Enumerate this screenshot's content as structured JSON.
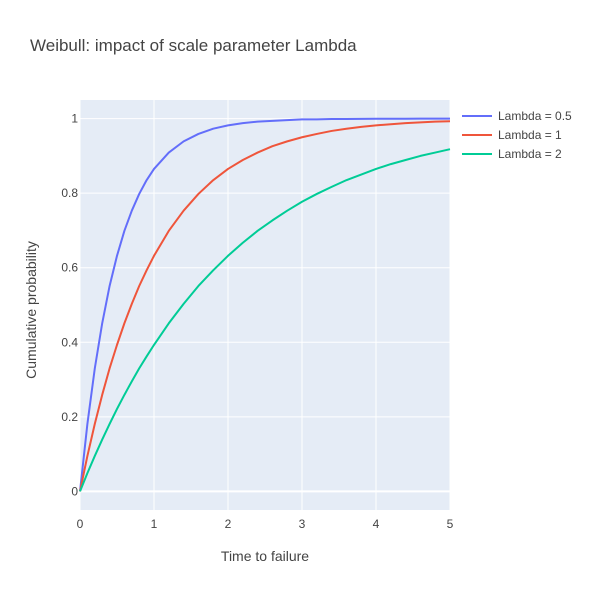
{
  "chart_data": {
    "type": "line",
    "title": "Weibull: impact of scale parameter Lambda",
    "xlabel": "Time to failure",
    "ylabel": "Cumulative probability",
    "xlim": [
      0,
      5
    ],
    "ylim": [
      -0.05,
      1.05
    ],
    "x_ticks": [
      "0",
      "1",
      "2",
      "3",
      "4",
      "5"
    ],
    "y_ticks": [
      "0",
      "0.2",
      "0.4",
      "0.6",
      "0.8",
      "1"
    ],
    "grid": true,
    "legend_position": "top-right",
    "plot_background": "#E5ECF6",
    "x": [
      0,
      0.1,
      0.2,
      0.3,
      0.4,
      0.5,
      0.6,
      0.7,
      0.8,
      0.9,
      1.0,
      1.2,
      1.4,
      1.6,
      1.8,
      2.0,
      2.2,
      2.4,
      2.6,
      2.8,
      3.0,
      3.2,
      3.4,
      3.6,
      3.8,
      4.0,
      4.2,
      4.4,
      4.6,
      4.8,
      5.0
    ],
    "series": [
      {
        "name": "Lambda = 0.5",
        "color": "#636EFA",
        "values": [
          0,
          0.181,
          0.33,
          0.451,
          0.551,
          0.632,
          0.699,
          0.753,
          0.798,
          0.835,
          0.865,
          0.909,
          0.939,
          0.959,
          0.973,
          0.982,
          0.988,
          0.992,
          0.994,
          0.996,
          0.998,
          0.998,
          0.999,
          0.999,
          0.9995,
          0.9997,
          0.9998,
          0.9998,
          0.9999,
          0.9999,
          1.0
        ]
      },
      {
        "name": "Lambda = 1",
        "color": "#EF553B",
        "values": [
          0,
          0.095,
          0.181,
          0.259,
          0.33,
          0.393,
          0.451,
          0.503,
          0.551,
          0.593,
          0.632,
          0.699,
          0.753,
          0.798,
          0.835,
          0.865,
          0.889,
          0.909,
          0.926,
          0.939,
          0.95,
          0.959,
          0.967,
          0.973,
          0.978,
          0.982,
          0.985,
          0.988,
          0.99,
          0.992,
          0.993
        ]
      },
      {
        "name": "Lambda = 2",
        "color": "#00CC96",
        "values": [
          0,
          0.049,
          0.095,
          0.139,
          0.181,
          0.221,
          0.259,
          0.295,
          0.33,
          0.362,
          0.393,
          0.451,
          0.503,
          0.551,
          0.593,
          0.632,
          0.667,
          0.699,
          0.727,
          0.753,
          0.777,
          0.798,
          0.817,
          0.835,
          0.85,
          0.865,
          0.878,
          0.889,
          0.9,
          0.909,
          0.918
        ]
      }
    ]
  }
}
